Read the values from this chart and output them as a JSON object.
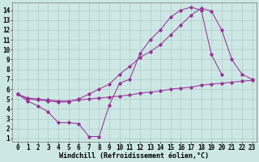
{
  "bg_color": "#cde8e4",
  "line_color": "#993399",
  "grid_color": "#b0ccc8",
  "xlabel": "Windchill (Refroidissement éolien,°C)",
  "xlim_min": -0.5,
  "xlim_max": 23.4,
  "ylim_min": 0.7,
  "ylim_max": 14.8,
  "xticks": [
    0,
    1,
    2,
    3,
    4,
    5,
    6,
    7,
    8,
    9,
    10,
    11,
    12,
    13,
    14,
    15,
    16,
    17,
    18,
    19,
    20,
    21,
    22,
    23
  ],
  "yticks": [
    1,
    2,
    3,
    4,
    5,
    6,
    7,
    8,
    9,
    10,
    11,
    12,
    13,
    14
  ],
  "curve1_x": [
    0,
    1,
    2,
    3,
    4,
    5,
    6,
    7,
    8,
    9,
    10,
    11,
    12,
    13,
    14,
    15,
    16,
    17,
    18,
    19,
    20
  ],
  "curve1_y": [
    5.5,
    4.8,
    4.3,
    3.7,
    2.6,
    2.6,
    2.5,
    1.2,
    1.2,
    4.4,
    6.6,
    7.0,
    9.6,
    11.0,
    12.0,
    13.3,
    14.0,
    14.3,
    14.0,
    9.5,
    7.5
  ],
  "curve2_x": [
    0,
    1,
    2,
    3,
    4,
    5,
    6,
    7,
    8,
    9,
    10,
    11,
    12,
    13,
    14,
    15,
    16,
    17,
    18,
    19,
    20,
    21,
    22,
    23
  ],
  "curve2_y": [
    5.5,
    5.1,
    5.0,
    4.9,
    4.8,
    4.8,
    4.9,
    5.0,
    5.1,
    5.2,
    5.3,
    5.4,
    5.6,
    5.7,
    5.8,
    6.0,
    6.1,
    6.2,
    6.4,
    6.5,
    6.6,
    6.7,
    6.8,
    6.9
  ],
  "curve3_x": [
    0,
    1,
    2,
    3,
    4,
    5,
    6,
    7,
    8,
    9,
    10,
    11,
    12,
    13,
    14,
    15,
    16,
    17,
    18,
    19,
    20,
    21,
    22,
    23
  ],
  "curve3_y": [
    5.5,
    5.0,
    4.9,
    4.8,
    4.7,
    4.7,
    5.0,
    5.5,
    6.0,
    6.5,
    7.5,
    8.3,
    9.2,
    9.8,
    10.5,
    11.5,
    12.5,
    13.5,
    14.2,
    13.9,
    12.0,
    9.0,
    7.5,
    7.0
  ],
  "tick_fontsize": 5.5,
  "xlabel_fontsize": 6.0
}
